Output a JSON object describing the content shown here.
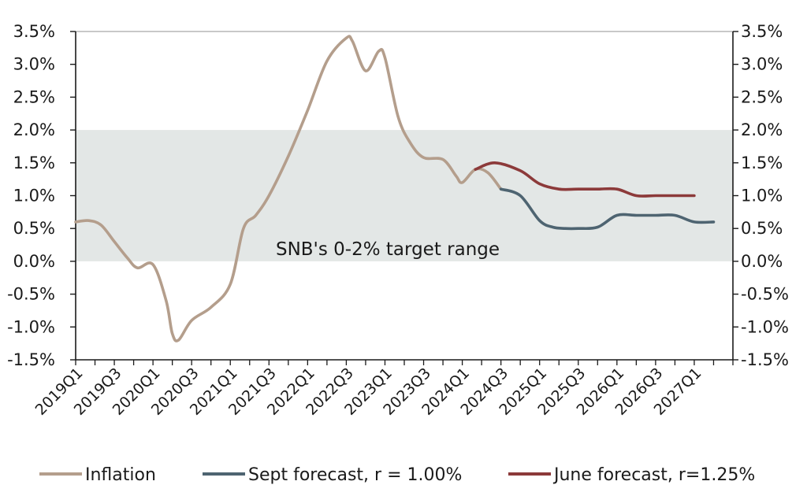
{
  "chart_data": {
    "type": "line",
    "title": "",
    "xlabel": "",
    "ylabel": "",
    "ylim": [
      -1.5,
      3.5
    ],
    "y_ticks": [
      "3.5%",
      "3.0%",
      "2.5%",
      "2.0%",
      "1.5%",
      "1.0%",
      "0.5%",
      "0.0%",
      "-0.5%",
      "-1.0%",
      "-1.5%"
    ],
    "y_tick_values": [
      3.5,
      3.0,
      2.5,
      2.0,
      1.5,
      1.0,
      0.5,
      0.0,
      -0.5,
      -1.0,
      -1.5
    ],
    "x_tick_labels": [
      "2019Q1",
      "2019Q3",
      "2020Q1",
      "2020Q3",
      "2021Q1",
      "2021Q3",
      "2022Q1",
      "2022Q3",
      "2023Q1",
      "2023Q3",
      "2024Q1",
      "2024Q3",
      "2025Q1",
      "2025Q3",
      "2026Q1",
      "2026Q3",
      "2027Q1"
    ],
    "grid": false,
    "secondary_y_axis": true,
    "target_band": {
      "label": "SNB's 0-2% target range",
      "from": 0,
      "to": 2,
      "color": "#e3e7e6"
    },
    "legend_position": "bottom",
    "series": [
      {
        "name": "Inflation",
        "color": "#b49e8c",
        "points": [
          [
            2019.0,
            0.6
          ],
          [
            2019.17,
            0.62
          ],
          [
            2019.33,
            0.55
          ],
          [
            2019.5,
            0.3
          ],
          [
            2019.67,
            0.05
          ],
          [
            2019.8,
            -0.1
          ],
          [
            2020.0,
            -0.05
          ],
          [
            2020.17,
            -0.6
          ],
          [
            2020.25,
            -1.1
          ],
          [
            2020.33,
            -1.2
          ],
          [
            2020.5,
            -0.9
          ],
          [
            2020.75,
            -0.7
          ],
          [
            2021.0,
            -0.35
          ],
          [
            2021.17,
            0.5
          ],
          [
            2021.33,
            0.7
          ],
          [
            2021.5,
            1.0
          ],
          [
            2021.75,
            1.6
          ],
          [
            2022.0,
            2.3
          ],
          [
            2022.25,
            3.05
          ],
          [
            2022.5,
            3.4
          ],
          [
            2022.58,
            3.35
          ],
          [
            2022.75,
            2.9
          ],
          [
            2022.92,
            3.2
          ],
          [
            2023.0,
            3.1
          ],
          [
            2023.17,
            2.2
          ],
          [
            2023.33,
            1.8
          ],
          [
            2023.5,
            1.58
          ],
          [
            2023.75,
            1.55
          ],
          [
            2023.92,
            1.3
          ],
          [
            2024.0,
            1.2
          ],
          [
            2024.17,
            1.4
          ],
          [
            2024.33,
            1.35
          ],
          [
            2024.5,
            1.1
          ]
        ]
      },
      {
        "name": "Sept forecast, r = 1.00%",
        "color": "#4e6471",
        "points": [
          [
            2024.5,
            1.1
          ],
          [
            2024.75,
            1.0
          ],
          [
            2025.0,
            0.62
          ],
          [
            2025.17,
            0.52
          ],
          [
            2025.33,
            0.5
          ],
          [
            2025.5,
            0.5
          ],
          [
            2025.75,
            0.52
          ],
          [
            2026.0,
            0.7
          ],
          [
            2026.25,
            0.7
          ],
          [
            2026.5,
            0.7
          ],
          [
            2026.75,
            0.7
          ],
          [
            2027.0,
            0.6
          ],
          [
            2027.25,
            0.6
          ]
        ]
      },
      {
        "name": "June forecast, r=1.25%",
        "color": "#8c3a3a",
        "points": [
          [
            2024.17,
            1.4
          ],
          [
            2024.42,
            1.5
          ],
          [
            2024.75,
            1.38
          ],
          [
            2025.0,
            1.18
          ],
          [
            2025.25,
            1.1
          ],
          [
            2025.5,
            1.1
          ],
          [
            2025.75,
            1.1
          ],
          [
            2026.0,
            1.1
          ],
          [
            2026.25,
            1.0
          ],
          [
            2026.5,
            1.0
          ],
          [
            2026.75,
            1.0
          ],
          [
            2027.0,
            1.0
          ]
        ]
      }
    ]
  }
}
